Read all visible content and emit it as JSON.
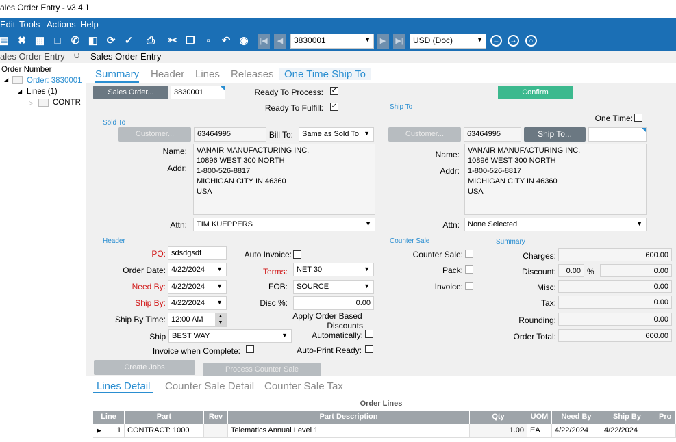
{
  "window": {
    "title": "ales Order Entry - v3.4.1"
  },
  "menu": [
    "Edit",
    "Tools",
    "Actions",
    "Help"
  ],
  "toolbar": {
    "icons": [
      "save-icon",
      "delete-icon",
      "truck-icon",
      "note-icon",
      "phone-icon",
      "tag-icon",
      "refresh-icon",
      "clean-icon",
      "print-icon",
      "cut-icon",
      "copy-icon",
      "paste-icon",
      "undo-icon",
      "find-icon"
    ],
    "order_combo": "3830001",
    "currency_combo": "USD (Doc)"
  },
  "tree": {
    "header": "ales Order Entry",
    "pin": "⮋",
    "root": "Order Number",
    "order": "Order: 3830001",
    "lines": "Lines (1)",
    "contract": "CONTR"
  },
  "main": {
    "header": "Sales Order Entry",
    "tabs": [
      "Summary",
      "Header",
      "Lines",
      "Releases",
      "One Time Ship To"
    ]
  },
  "summary": {
    "sales_order_btn": "Sales Order...",
    "sales_order_value": "3830001",
    "ready_to_process": "Ready To Process:",
    "ready_to_fulfill": "Ready To Fulfill:",
    "confirm_btn": "Confirm",
    "sold_to": {
      "group": "Sold To",
      "customer_btn": "Customer...",
      "customer_value": "63464995",
      "bill_to_label": "Bill To:",
      "bill_to_value": "Same as Sold To",
      "name_label": "Name:",
      "addr_label": "Addr:",
      "address": [
        "VANAIR MANUFACTURING INC.",
        "10896 WEST 300 NORTH",
        "1-800-526-8817",
        "MICHIGAN CITY IN 46360",
        "USA"
      ],
      "attn_label": "Attn:",
      "attn_value": "TIM KUEPPERS"
    },
    "ship_to": {
      "group": "Ship To",
      "one_time_label": "One Time:",
      "customer_btn": "Customer...",
      "customer_value": "63464995",
      "ship_to_btn": "Ship To...",
      "name_label": "Name:",
      "addr_label": "Addr:",
      "address": [
        "VANAIR MANUFACTURING INC.",
        "10896 WEST 300 NORTH",
        "1-800-526-8817",
        "MICHIGAN CITY IN 46360",
        "USA"
      ],
      "attn_label": "Attn:",
      "attn_value": "None Selected"
    },
    "header": {
      "group": "Header",
      "po_label": "PO:",
      "po_value": "sdsdgsdf",
      "auto_invoice": "Auto Invoice:",
      "order_date_label": "Order Date:",
      "order_date": "4/22/2024",
      "terms_label": "Terms:",
      "terms_value": "NET 30",
      "need_by_label": "Need By:",
      "need_by": "4/22/2024",
      "fob_label": "FOB:",
      "fob_value": "SOURCE",
      "ship_by_label": "Ship By:",
      "ship_by": "4/22/2024",
      "disc_label": "Disc %:",
      "disc_value": "0.00",
      "ship_time_label": "Ship By Time:",
      "ship_time": "12:00 AM",
      "apply_discounts_1": "Apply Order Based",
      "apply_discounts_2": "Discounts",
      "apply_discounts_3": "Automatically:",
      "ship_via_label": "Ship Via:",
      "ship_via": "BEST WAY",
      "invoice_complete": "Invoice when Complete:",
      "auto_print": "Auto-Print Ready:"
    },
    "counter_sale": {
      "group": "Counter Sale",
      "counter_sale_label": "Counter Sale:",
      "pack_label": "Pack:",
      "invoice_label": "Invoice:"
    },
    "totals": {
      "group": "Summary",
      "charges_label": "Charges:",
      "charges": "600.00",
      "discount_label": "Discount:",
      "discount_pct": "0.00",
      "pct_sign": "%",
      "discount": "0.00",
      "misc_label": "Misc:",
      "misc": "0.00",
      "tax_label": "Tax:",
      "tax": "0.00",
      "rounding_label": "Rounding:",
      "rounding": "0.00",
      "total_label": "Order Total:",
      "total": "600.00"
    },
    "create_jobs_btn": "Create Jobs",
    "process_counter_btn": "Process Counter Sale"
  },
  "subtabs": [
    "Lines Detail",
    "Counter Sale Detail",
    "Counter Sale Tax"
  ],
  "grid": {
    "title": "Order Lines",
    "columns": [
      "Line",
      "Part",
      "Rev",
      "Part Description",
      "Qty",
      "UOM",
      "Need By",
      "Ship By",
      "Pro"
    ],
    "rows": [
      {
        "line": "1",
        "part": "CONTRACT: 1000",
        "rev": "",
        "desc": "Telematics Annual Level 1",
        "qty": "1.00",
        "uom": "EA",
        "need_by": "4/22/2024",
        "ship_by": "4/22/2024",
        "pro": ""
      }
    ]
  },
  "colors": {
    "accent": "#1b6fb5",
    "link": "#2a8ed1",
    "confirm": "#3cb98e",
    "required": "#d11919"
  }
}
